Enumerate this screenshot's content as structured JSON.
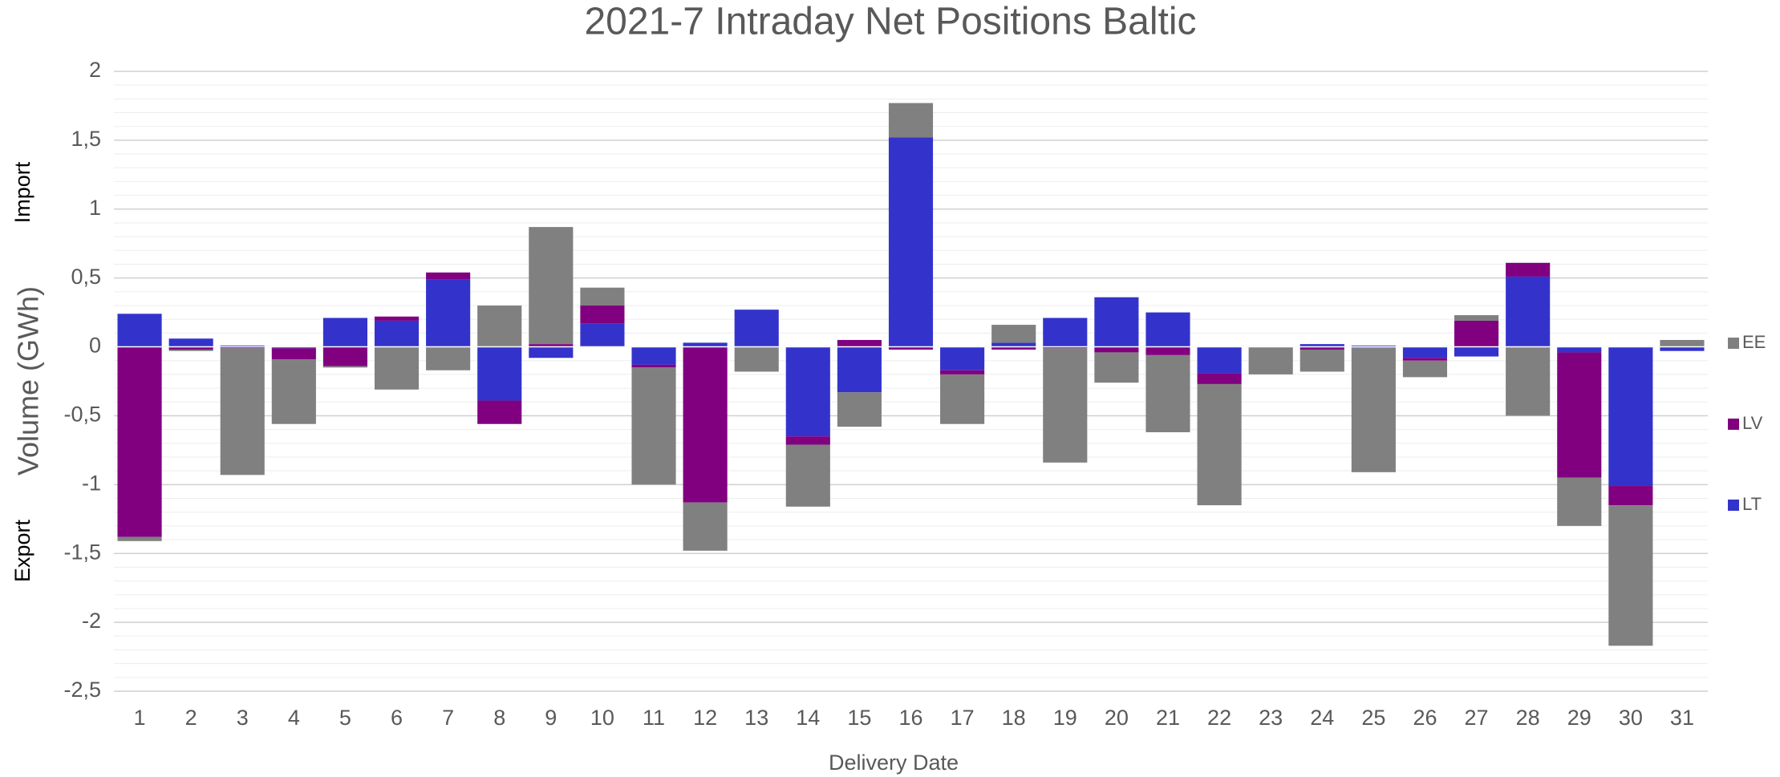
{
  "chart_data": {
    "type": "stacked_bar",
    "title": "2021-7 Intraday Net Positions Baltic",
    "x_label": "Delivery Date",
    "y_label": "Volume (GWh)",
    "annotations": [
      "Import",
      "Export"
    ],
    "categories": [
      "1",
      "2",
      "3",
      "4",
      "5",
      "6",
      "7",
      "8",
      "9",
      "10",
      "11",
      "12",
      "13",
      "14",
      "15",
      "16",
      "17",
      "18",
      "19",
      "20",
      "21",
      "22",
      "23",
      "24",
      "25",
      "26",
      "27",
      "28",
      "29",
      "30",
      "31"
    ],
    "series": [
      {
        "name": "LT",
        "color": "#3333cc",
        "values": [
          0.24,
          0.06,
          0.01,
          -0.01,
          0.21,
          0.19,
          0.49,
          -0.39,
          -0.08,
          0.17,
          -0.13,
          0.03,
          0.27,
          -0.65,
          -0.33,
          1.52,
          -0.17,
          0.03,
          0.21,
          0.36,
          0.25,
          -0.19,
          0,
          0.02,
          0.01,
          -0.08,
          -0.07,
          0.51,
          -0.04,
          -1.01,
          -0.03
        ]
      },
      {
        "name": "LV",
        "color": "#800080",
        "values": [
          -1.38,
          -0.02,
          -0.01,
          -0.08,
          -0.14,
          0.03,
          0.05,
          -0.17,
          0.02,
          0.13,
          -0.02,
          -1.13,
          0,
          -0.06,
          0.05,
          -0.02,
          -0.03,
          -0.02,
          -0.01,
          -0.04,
          -0.06,
          -0.08,
          0,
          -0.02,
          0,
          -0.02,
          0.19,
          0.1,
          -0.91,
          -0.14,
          0
        ]
      },
      {
        "name": "EE",
        "color": "#808080",
        "values": [
          -0.03,
          -0.01,
          -0.92,
          -0.47,
          -0.01,
          -0.31,
          -0.17,
          0.3,
          0.85,
          0.13,
          -0.85,
          -0.35,
          -0.18,
          -0.45,
          -0.25,
          0.25,
          -0.36,
          0.13,
          -0.83,
          -0.22,
          -0.56,
          -0.88,
          -0.2,
          -0.16,
          -0.91,
          -0.12,
          0.04,
          -0.5,
          -0.35,
          -1.02,
          0.05
        ]
      }
    ],
    "ylim": [
      -2.5,
      2
    ],
    "yticks": [
      {
        "value": -2.5,
        "label": "-2,5"
      },
      -2,
      {
        "value": -1.5,
        "label": "-1,5"
      },
      -1,
      {
        "value": -0.5,
        "label": "-0,5"
      },
      0,
      {
        "value": 0.5,
        "label": "0,5"
      },
      1,
      {
        "value": 1.5,
        "label": "1,5"
      },
      2
    ],
    "grid": true,
    "legend": "right"
  }
}
